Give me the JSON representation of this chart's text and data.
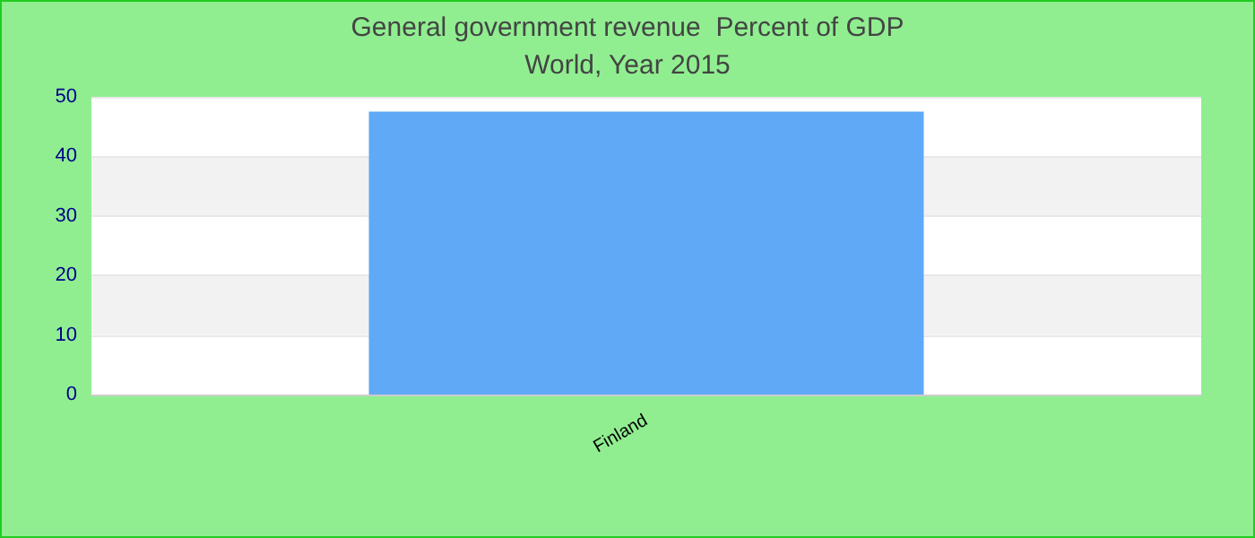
{
  "chart_data": {
    "type": "bar",
    "title": "General government revenue  Percent of GDP",
    "subtitle": "World, Year 2015",
    "categories": [
      "Finland"
    ],
    "values": [
      47.5
    ],
    "color": "#60a9f6",
    "ylim": [
      0,
      50
    ],
    "yticks": [
      0,
      10,
      20,
      30,
      40,
      50
    ],
    "grid": "y"
  }
}
